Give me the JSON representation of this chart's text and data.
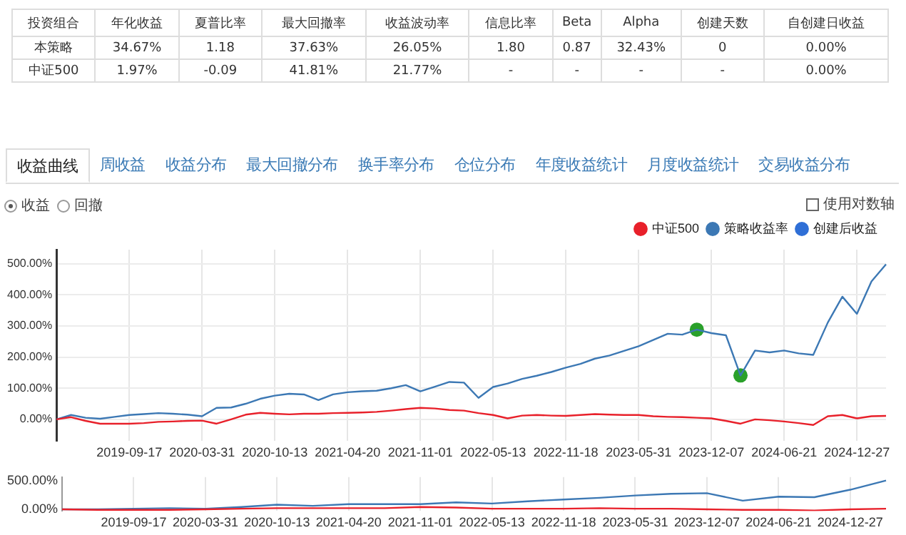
{
  "chart_data": [
    {
      "type": "other",
      "categories": [
        "投资组合",
        "年化收益",
        "夏普比率",
        "最大回撤率",
        "收益波动率",
        "信息比率",
        "Beta",
        "Alpha",
        "创建天数",
        "自创建日收益"
      ],
      "annotations": [
        "本策略",
        "34.67%",
        "1.18",
        "37.63%",
        "26.05%",
        "1.80",
        "0.87",
        "32.43%",
        "0",
        "0.00%",
        "中证500",
        "1.97%",
        "-0.09",
        "41.81%",
        "21.77%",
        "-",
        "-",
        "-",
        "-",
        "0.00%",
        "收益曲线",
        "周收益",
        "收益分布",
        "最大回撤分布",
        "换手率分布",
        "仓位分布",
        "年度收益统计",
        "月度收益统计",
        "交易收益分布",
        "收益",
        "回撤",
        "使用对数轴"
      ]
    },
    {
      "type": "line",
      "legend": "top right",
      "grid": true,
      "marker": "none",
      "categories": [
        null,
        null,
        null,
        null,
        null,
        "2019-09-17",
        null,
        null,
        null,
        null,
        "2020-03-31",
        null,
        null,
        null,
        null,
        "2020-10-13",
        null,
        null,
        null,
        null,
        "2021-04-20",
        null,
        null,
        null,
        null,
        "2021-11-01",
        null,
        null,
        null,
        null,
        "2022-05-13",
        null,
        null,
        null,
        null,
        "2022-11-18",
        null,
        null,
        null,
        null,
        "2023-05-31",
        null,
        null,
        null,
        null,
        "2023-12-07",
        null,
        null,
        null,
        null,
        "2024-06-21",
        null,
        null,
        null,
        null,
        "2024-12-27",
        null,
        null
      ],
      "ylim": [
        -70,
        545
      ],
      "yticks": [
        {
          "value": 0,
          "label": "0.00%"
        },
        {
          "value": 100,
          "label": "100.00%"
        },
        {
          "value": 200,
          "label": "200.00%"
        },
        {
          "value": 300,
          "label": "300.00%"
        },
        {
          "value": 400,
          "label": "400.00%"
        },
        {
          "value": 500,
          "label": "500.00%"
        }
      ],
      "series": [
        {
          "name": "中证500",
          "color": "#e8202a",
          "values": [
            0,
            7,
            -5,
            -14,
            -14,
            -14,
            -12,
            -8,
            -7,
            -5,
            -4,
            -14,
            0,
            15,
            21,
            18,
            16,
            18,
            18,
            20,
            21,
            22,
            24,
            28,
            33,
            37,
            35,
            30,
            28,
            20,
            14,
            3,
            12,
            14,
            12,
            11,
            14,
            17,
            15,
            14,
            14,
            10,
            8,
            7,
            5,
            3,
            -5,
            -14,
            0,
            -3,
            -7,
            -12,
            -18,
            10,
            14,
            3,
            10,
            11
          ]
        },
        {
          "name": "策略收益率",
          "color": "#3c78b4",
          "values": [
            0,
            14,
            5,
            2,
            8,
            14,
            17,
            20,
            18,
            15,
            10,
            37,
            38,
            50,
            66,
            76,
            82,
            80,
            62,
            80,
            87,
            90,
            92,
            100,
            110,
            90,
            105,
            120,
            118,
            69,
            104,
            115,
            130,
            140,
            152,
            166,
            178,
            195,
            205,
            220,
            235,
            255,
            275,
            272,
            288,
            277,
            270,
            141,
            221,
            215,
            221,
            212,
            207,
            311,
            394,
            339,
            443,
            498
          ]
        },
        {
          "name": "创建后收益",
          "color": "#2f6fd6",
          "values": [
            null,
            null,
            null,
            null,
            null,
            null,
            null,
            null,
            null,
            null,
            null,
            null,
            null,
            null,
            null,
            null,
            null,
            null,
            null,
            null,
            null,
            null,
            null,
            null,
            null,
            null,
            null,
            null,
            null,
            null,
            null,
            null,
            null,
            null,
            null,
            null,
            null,
            null,
            null,
            null,
            null,
            null,
            null,
            null,
            null,
            null,
            null,
            null,
            null,
            null,
            null,
            null,
            null,
            null,
            null,
            null,
            null,
            null
          ]
        },
        {
          "type": "scatter",
          "marker": "circle",
          "color": "#2aa02a",
          "values": [
            null,
            null,
            null,
            null,
            null,
            null,
            null,
            null,
            null,
            null,
            null,
            null,
            null,
            null,
            null,
            null,
            null,
            null,
            null,
            null,
            null,
            null,
            null,
            null,
            null,
            null,
            null,
            null,
            null,
            null,
            null,
            null,
            null,
            null,
            null,
            null,
            null,
            null,
            null,
            null,
            null,
            null,
            null,
            null,
            288,
            null,
            null,
            141,
            null,
            null,
            null,
            null,
            null,
            null,
            null,
            null,
            null,
            null
          ]
        }
      ]
    },
    {
      "type": "line",
      "legend": false,
      "grid": "x",
      "marker": "none",
      "categories": [
        null,
        null,
        "2019-09-17",
        null,
        "2020-03-31",
        null,
        "2020-10-13",
        null,
        "2021-04-20",
        null,
        "2021-11-01",
        null,
        "2022-05-13",
        null,
        "2022-11-18",
        null,
        "2023-05-31",
        null,
        "2023-12-07",
        null,
        "2024-06-21",
        null,
        "2024-12-27",
        null
      ],
      "ylim": [
        -30,
        560
      ],
      "yticks": [
        {
          "value": 0,
          "label": "0.00%"
        },
        {
          "value": 500,
          "label": "500.00%"
        }
      ],
      "series": [
        {
          "color": "#e8202a",
          "values": [
            0,
            -10,
            -10,
            -10,
            0,
            10,
            20,
            20,
            20,
            20,
            40,
            30,
            10,
            10,
            10,
            20,
            10,
            10,
            0,
            -10,
            -10,
            -20,
            0,
            10
          ]
        },
        {
          "color": "#3c78b4",
          "values": [
            0,
            0,
            10,
            20,
            10,
            40,
            80,
            60,
            90,
            90,
            90,
            120,
            100,
            140,
            170,
            200,
            240,
            270,
            280,
            150,
            220,
            210,
            340,
            500
          ]
        }
      ]
    }
  ]
}
